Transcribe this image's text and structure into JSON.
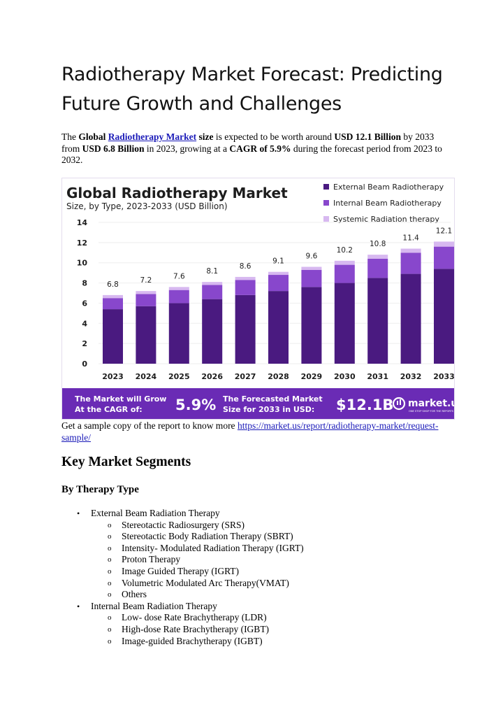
{
  "title": "Radiotherapy Market Forecast: Predicting Future Growth and Challenges",
  "intro": {
    "p1": "The ",
    "b1": "Global ",
    "link": "Radiotherapy Market",
    "b2": " size",
    "p2": " is expected to be worth around ",
    "b3": "USD 12.1 Billion",
    "p3": " by 2033 from ",
    "b4": "USD 6.8 Billion",
    "p4": " in 2023, growing at a ",
    "b5": "CAGR of 5.9%",
    "p5": "  during the forecast period from 2023 to 2032."
  },
  "chart_data": {
    "type": "bar",
    "stacked": true,
    "title": "Global Radiotherapy Market",
    "subtitle": "Size, by Type, 2023-2033 (USD Billion)",
    "categories": [
      "2023",
      "2024",
      "2025",
      "2026",
      "2027",
      "2028",
      "2029",
      "2030",
      "2031",
      "2032",
      "2033"
    ],
    "totals": [
      "6.8",
      "7.2",
      "7.6",
      "8.1",
      "8.6",
      "9.1",
      "9.6",
      "10.2",
      "10.8",
      "11.4",
      "12.1"
    ],
    "series": [
      {
        "name": "External Beam Radiotherapy",
        "color": "#4a1a80",
        "values": [
          5.4,
          5.7,
          6.0,
          6.4,
          6.8,
          7.2,
          7.6,
          8.0,
          8.5,
          8.9,
          9.4
        ]
      },
      {
        "name": "Internal Beam Radiotherapy",
        "color": "#8847cc",
        "values": [
          1.1,
          1.2,
          1.3,
          1.4,
          1.5,
          1.6,
          1.7,
          1.8,
          1.9,
          2.1,
          2.2
        ]
      },
      {
        "name": "Systemic Radiation therapy",
        "color": "#d7b8f0",
        "values": [
          0.3,
          0.3,
          0.3,
          0.3,
          0.3,
          0.3,
          0.3,
          0.4,
          0.4,
          0.4,
          0.5
        ]
      }
    ],
    "yticks": [
      "0",
      "2",
      "4",
      "6",
      "8",
      "10",
      "12",
      "14"
    ],
    "ylim": [
      0,
      14
    ],
    "legend_position": "top-right",
    "footer": {
      "cagr_label_1": "The Market will Grow",
      "cagr_label_2": "At the CAGR of:",
      "cagr_value": "5.9%",
      "size_label_1": "The Forecasted Market",
      "size_label_2": "Size for 2033 in USD:",
      "size_value": "$12.1B",
      "brand": "market.us",
      "tagline": "ONE STOP SHOP FOR THE REPORTS"
    },
    "colors": {
      "footer_bg": "#6a2bb5",
      "grid": "#eeeeee",
      "text": "#1d1d1d"
    }
  },
  "sample": {
    "text": "Get a sample copy of the report to know more ",
    "link": " https://market.us/report/radiotherapy-market/request-sample/"
  },
  "segments": {
    "heading": "Key Market Segments",
    "subheading": "By Therapy Type",
    "items": [
      {
        "label": "External Beam Radiation Therapy",
        "children": [
          "Stereotactic Radiosurgery (SRS)",
          "Stereotactic Body Radiation Therapy (SBRT)",
          "Intensity- Modulated Radiation Therapy (IGRT)",
          "Proton Therapy",
          "Image Guided Therapy (IGRT)",
          "Volumetric Modulated Arc Therapy(VMAT)",
          "Others"
        ]
      },
      {
        "label": "Internal Beam Radiation Therapy",
        "children": [
          "Low- dose Rate Brachytherapy (LDR)",
          "High-dose Rate Brachytherapy (IGBT)",
          "Image-guided Brachytherapy (IGBT)"
        ]
      }
    ],
    "bullet": "•",
    "sub_bullet": "o"
  }
}
